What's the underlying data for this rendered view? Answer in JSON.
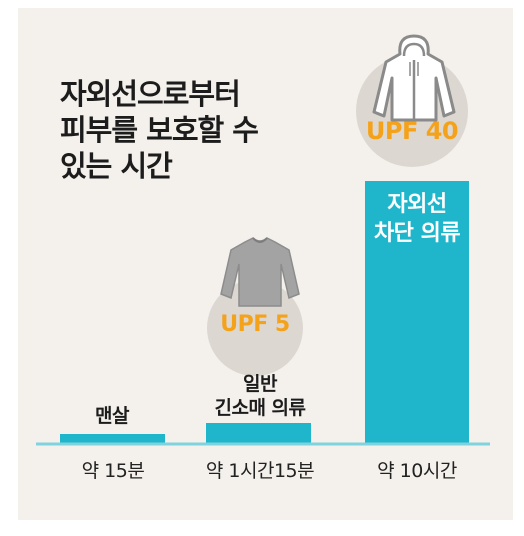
{
  "chart_data": {
    "type": "bar",
    "title_lines": [
      "자외선으로부터",
      "피부를 보호할 수",
      "있는 시간"
    ],
    "categories": [
      "약 15분",
      "약 1시간15분",
      "약 10시간"
    ],
    "values": [
      15,
      75,
      600
    ],
    "value_unit": "minutes",
    "bar_labels": [
      [
        "맨살"
      ],
      [
        "일반",
        "긴소매 의류"
      ],
      [
        "자외선",
        "차단 의류"
      ]
    ],
    "badges": [
      null,
      "UPF 5",
      "UPF 40"
    ],
    "badge_icons": [
      null,
      "long-sleeve-shirt-icon",
      "hooded-jacket-icon"
    ],
    "ylim": [
      0,
      600
    ],
    "grid": false,
    "legend": "none"
  },
  "colors": {
    "bar": "#1fb6cc",
    "baseline": "#7fd3de",
    "badge_text": "#f5a21b",
    "badge_circle": "#dcd7d1",
    "icon_gray": "#9c9c9c",
    "background": "#f4f1ec"
  }
}
